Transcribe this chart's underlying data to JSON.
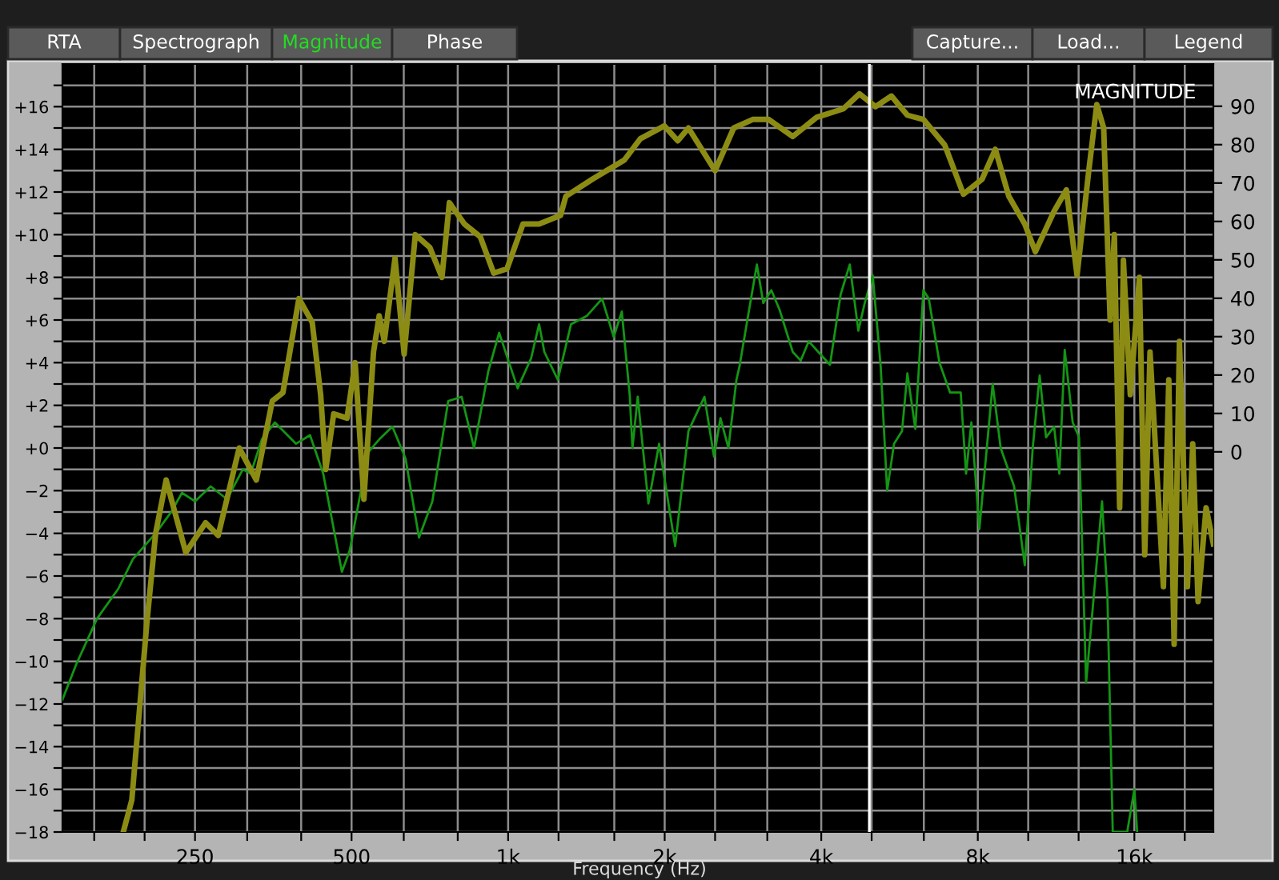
{
  "chart_data": {
    "type": "line",
    "title": "MAGNITUDE",
    "xlabel": "Frequency (Hz)",
    "log": "x",
    "grid": true,
    "legend": false,
    "marker": "none",
    "line_style": "solid",
    "annotations": [
      "RTA",
      "Spectrograph",
      "Magnitude",
      "Phase",
      "Capture...",
      "Load...",
      "Legend"
    ],
    "xlim": [
      139,
      22700
    ],
    "ylim": [
      -18,
      18
    ],
    "y2lim": [
      -99,
      101
    ],
    "xticks": [
      {
        "value": 160,
        "label": null
      },
      {
        "value": 200,
        "label": null
      },
      250,
      {
        "value": 315,
        "label": null
      },
      {
        "value": 400,
        "label": null
      },
      500,
      {
        "value": 630,
        "label": null
      },
      {
        "value": 800,
        "label": null
      },
      {
        "value": 1000,
        "label": "1k"
      },
      {
        "value": 1250,
        "label": null
      },
      {
        "value": 1600,
        "label": null
      },
      {
        "value": 2000,
        "label": "2k"
      },
      {
        "value": 2500,
        "label": null
      },
      {
        "value": 3150,
        "label": null
      },
      {
        "value": 4000,
        "label": "4k"
      },
      {
        "value": 5000,
        "label": null
      },
      {
        "value": 6300,
        "label": null
      },
      {
        "value": 8000,
        "label": "8k"
      },
      {
        "value": 10000,
        "label": null
      },
      {
        "value": 12500,
        "label": null
      },
      {
        "value": 16000,
        "label": "16k"
      },
      {
        "value": 20000,
        "label": null
      }
    ],
    "yticks": [
      {
        "value": -18,
        "label": "−18"
      },
      {
        "value": -17,
        "label": null
      },
      {
        "value": -16,
        "label": "−16"
      },
      {
        "value": -15,
        "label": null
      },
      {
        "value": -14,
        "label": "−14"
      },
      {
        "value": -13,
        "label": null
      },
      {
        "value": -12,
        "label": "−12"
      },
      {
        "value": -11,
        "label": null
      },
      {
        "value": -10,
        "label": "−10"
      },
      {
        "value": -9,
        "label": null
      },
      {
        "value": -8,
        "label": "−8"
      },
      {
        "value": -7,
        "label": null
      },
      {
        "value": -6,
        "label": "−6"
      },
      {
        "value": -5,
        "label": null
      },
      {
        "value": -4,
        "label": "−4"
      },
      {
        "value": -3,
        "label": null
      },
      {
        "value": -2,
        "label": "−2"
      },
      {
        "value": -1,
        "label": null
      },
      {
        "value": 0,
        "label": "+0"
      },
      {
        "value": 1,
        "label": null
      },
      {
        "value": 2,
        "label": "+2"
      },
      {
        "value": 3,
        "label": null
      },
      {
        "value": 4,
        "label": "+4"
      },
      {
        "value": 5,
        "label": null
      },
      {
        "value": 6,
        "label": "+6"
      },
      {
        "value": 7,
        "label": null
      },
      {
        "value": 8,
        "label": "+8"
      },
      {
        "value": 9,
        "label": null
      },
      {
        "value": 10,
        "label": "+10"
      },
      {
        "value": 11,
        "label": null
      },
      {
        "value": 12,
        "label": "+12"
      },
      {
        "value": 13,
        "label": null
      },
      {
        "value": 14,
        "label": "+14"
      },
      {
        "value": 15,
        "label": null
      },
      {
        "value": 16,
        "label": "+16"
      },
      {
        "value": 17,
        "label": null
      }
    ],
    "y2ticks": [
      0,
      10,
      20,
      30,
      40,
      50,
      60,
      70,
      80,
      90
    ],
    "ref_lines": [
      {
        "axis": "x",
        "value": 4950,
        "color": "#ffffff"
      }
    ],
    "series": [
      {
        "color": "#8c8c14",
        "x": [
          182,
          189,
          202,
          210,
          220,
          240,
          262,
          277,
          304,
          328,
          352,
          369,
          396,
          420,
          436,
          446,
          462,
          490,
          508,
          528,
          551,
          565,
          578,
          606,
          631,
          663,
          707,
          746,
          771,
          824,
          884,
          938,
          995,
          1068,
          1147,
          1261,
          1291,
          1452,
          1673,
          1796,
          1997,
          2119,
          2222,
          2500,
          2715,
          2953,
          3170,
          3526,
          3920,
          4411,
          4737,
          5084,
          5458,
          5857,
          6287,
          6910,
          7506,
          8152,
          8646,
          9177,
          9849,
          10324,
          11214,
          11842,
          12414,
          13076,
          13548,
          13968,
          14370,
          14642,
          14991,
          15242,
          15714,
          16361,
          16750,
          17148,
          18196,
          18634,
          19080,
          19534,
          20236,
          20718,
          21213,
          21980,
          22700
        ],
        "values": [
          -18,
          -16.5,
          -8.2,
          -4.0,
          -1.5,
          -4.9,
          -3.5,
          -4.1,
          0,
          -1.5,
          2.2,
          2.6,
          7.0,
          5.9,
          2.5,
          -1.0,
          1.6,
          1.4,
          4.0,
          -2.4,
          4.5,
          6.2,
          5.0,
          8.9,
          4.4,
          10.0,
          9.4,
          8.0,
          11.5,
          10.5,
          9.9,
          8.2,
          8.4,
          10.5,
          10.5,
          10.9,
          11.8,
          12.6,
          13.5,
          14.5,
          15.1,
          14.4,
          15.0,
          13.0,
          15.0,
          15.4,
          15.4,
          14.6,
          15.5,
          15.9,
          16.6,
          16.0,
          16.5,
          15.6,
          15.4,
          14.2,
          11.9,
          12.6,
          14.0,
          11.8,
          10.5,
          9.2,
          11.1,
          12.1,
          8.1,
          13.0,
          16.1,
          15.0,
          6.0,
          10.0,
          -2.8,
          8.8,
          2.5,
          8.0,
          -5.0,
          4.5,
          -6.5,
          3.2,
          -9.2,
          5.0,
          -6.5,
          0.2,
          -7.2,
          -2.8,
          -4.5
        ]
      },
      {
        "color": "#149614",
        "x": [
          139,
          148,
          162,
          178,
          190,
          210,
          225,
          236,
          250,
          268,
          288,
          309,
          320,
          336,
          356,
          391,
          416,
          441,
          479,
          496,
          538,
          565,
          599,
          635,
          674,
          715,
          767,
          814,
          860,
          916,
          961,
          1043,
          1107,
          1147,
          1174,
          1246,
          1321,
          1418,
          1516,
          1596,
          1654,
          1713,
          1734,
          1775,
          1861,
          1951,
          2095,
          2222,
          2385,
          2488,
          2560,
          2652,
          2748,
          2784,
          2884,
          3008,
          3095,
          3207,
          3324,
          3526,
          3652,
          3784,
          4158,
          4359,
          4538,
          4714,
          4850,
          5024,
          5205,
          5355,
          5521,
          5720,
          5857,
          6067,
          6287,
          6439,
          6750,
          7075,
          7417,
          7595,
          7776,
          8056,
          8544,
          8852,
          9395,
          9849,
          10202,
          10520,
          10822,
          11214,
          11480,
          11754,
          12176,
          12526,
          12922,
          13230,
          13868,
          14202,
          14540,
          15500,
          16000,
          16200
        ],
        "values": [
          -11.8,
          -10.1,
          -8.0,
          -6.6,
          -5.2,
          -4.0,
          -3.0,
          -2.1,
          -2.5,
          -1.8,
          -2.4,
          -1.0,
          -1.2,
          0.4,
          1.2,
          0.2,
          0.6,
          -1.2,
          -5.8,
          -4.8,
          -0.2,
          0.4,
          1.0,
          -0.5,
          -4.2,
          -2.5,
          2.2,
          2.4,
          0.0,
          3.6,
          5.4,
          2.8,
          4.2,
          5.8,
          4.5,
          3.2,
          5.8,
          6.2,
          7.0,
          5.2,
          6.4,
          2.5,
          0.0,
          2.4,
          -2.6,
          0.2,
          -4.6,
          0.8,
          2.4,
          -0.4,
          1.4,
          0.0,
          3.2,
          3.8,
          6.0,
          8.6,
          6.8,
          7.4,
          6.5,
          4.5,
          4.1,
          5.0,
          3.9,
          7.2,
          8.6,
          5.5,
          6.8,
          8.1,
          3.8,
          -2.0,
          0.2,
          0.8,
          3.5,
          0.9,
          7.4,
          7.0,
          4.0,
          2.6,
          2.6,
          -1.2,
          1.2,
          -3.8,
          3.0,
          0.0,
          -1.8,
          -5.5,
          0.0,
          3.4,
          0.5,
          1.0,
          -1.2,
          4.6,
          1.2,
          0.5,
          -11.0,
          -8.2,
          -2.5,
          -7.0,
          -18,
          -18,
          -16.0,
          -18
        ]
      }
    ]
  }
}
